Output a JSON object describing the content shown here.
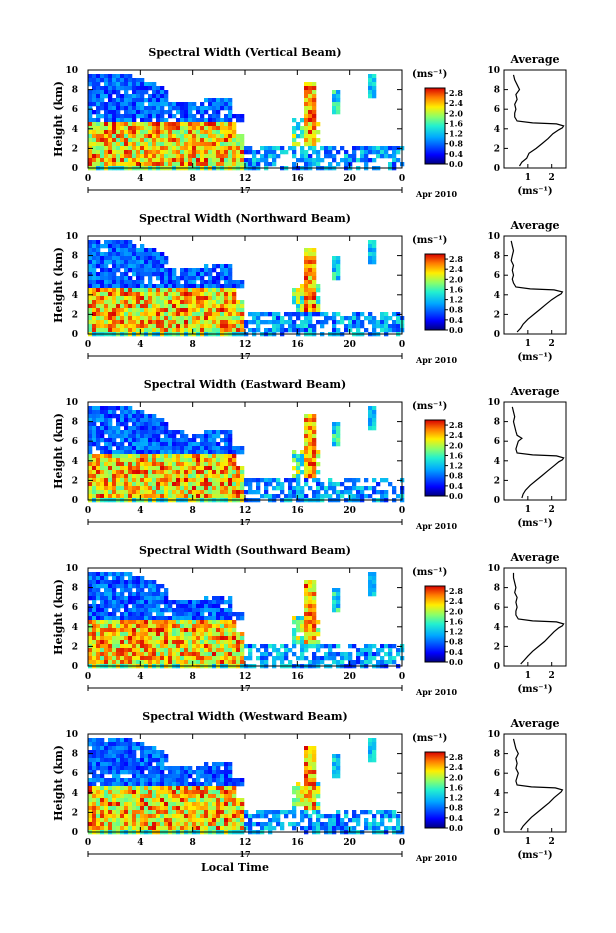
{
  "chart_data": [
    {
      "type": "heatmap",
      "title": "Spectral Width (Vertical Beam)",
      "ylabel": "Height (km)",
      "xlabel": "",
      "yticks": [
        "0",
        "2",
        "4",
        "6",
        "8",
        "10"
      ],
      "xticks": [
        "0",
        "4",
        "8",
        "12",
        "16",
        "20",
        "0"
      ],
      "day_label": "17",
      "date_label": "Apr 2010",
      "ylim": [
        0,
        10
      ],
      "xlim": [
        0,
        24
      ],
      "colorbar": {
        "unit": "(ms⁻¹)",
        "ticks": [
          "0.0",
          "0.4",
          "0.8",
          "1.2",
          "1.6",
          "2.0",
          "2.4",
          "2.8"
        ],
        "range": [
          0,
          3.0
        ]
      },
      "average": {
        "title": "Average",
        "xlabel": "(ms⁻¹)",
        "xticks": [
          "1",
          "2"
        ],
        "yticks": [
          "0",
          "2",
          "4",
          "6",
          "8",
          "10"
        ],
        "height": [
          0.2,
          0.6,
          1.0,
          1.5,
          2.0,
          2.5,
          3.0,
          3.5,
          3.9,
          4.1,
          4.3,
          4.5,
          4.6,
          4.8,
          5.2,
          5.6,
          6.0,
          6.5,
          7.0,
          7.5,
          8.0,
          8.5,
          9.0,
          9.5
        ],
        "value": [
          0.65,
          0.75,
          0.95,
          1.05,
          1.35,
          1.6,
          1.85,
          2.05,
          2.3,
          2.45,
          2.5,
          2.2,
          1.2,
          0.55,
          0.45,
          0.45,
          0.5,
          0.45,
          0.55,
          0.5,
          0.65,
          0.55,
          0.45,
          0.4
        ]
      }
    },
    {
      "type": "heatmap",
      "title": "Spectral Width (Northward Beam)",
      "ylabel": "Height (km)",
      "xlabel": "",
      "yticks": [
        "0",
        "2",
        "4",
        "6",
        "8",
        "10"
      ],
      "xticks": [
        "0",
        "4",
        "8",
        "12",
        "16",
        "20",
        "0"
      ],
      "day_label": "17",
      "date_label": "Apr 2010",
      "ylim": [
        0,
        10
      ],
      "xlim": [
        0,
        24
      ],
      "colorbar": {
        "unit": "(ms⁻¹)",
        "ticks": [
          "0.0",
          "0.4",
          "0.8",
          "1.2",
          "1.6",
          "2.0",
          "2.4",
          "2.8"
        ],
        "range": [
          0,
          3.0
        ]
      },
      "average": {
        "title": "Average",
        "xlabel": "(ms⁻¹)",
        "xticks": [
          "1",
          "2"
        ],
        "yticks": [
          "0",
          "2",
          "4",
          "6",
          "8",
          "10"
        ],
        "height": [
          0.2,
          0.6,
          1.0,
          1.5,
          2.0,
          2.5,
          3.0,
          3.5,
          3.9,
          4.1,
          4.3,
          4.5,
          4.6,
          4.8,
          5.2,
          5.6,
          6.0,
          6.5,
          7.0,
          7.5,
          8.0,
          8.5,
          9.0,
          9.5
        ],
        "value": [
          0.55,
          0.7,
          0.8,
          1.0,
          1.25,
          1.5,
          1.75,
          2.0,
          2.25,
          2.4,
          2.45,
          2.1,
          1.1,
          0.5,
          0.4,
          0.35,
          0.4,
          0.35,
          0.4,
          0.3,
          0.35,
          0.4,
          0.35,
          0.3
        ]
      }
    },
    {
      "type": "heatmap",
      "title": "Spectral Width (Eastward Beam)",
      "ylabel": "Height (km)",
      "xlabel": "",
      "yticks": [
        "0",
        "2",
        "4",
        "6",
        "8",
        "10"
      ],
      "xticks": [
        "0",
        "4",
        "8",
        "12",
        "16",
        "20",
        "0"
      ],
      "day_label": "17",
      "date_label": "Apr 2010",
      "ylim": [
        0,
        10
      ],
      "xlim": [
        0,
        24
      ],
      "colorbar": {
        "unit": "(ms⁻¹)",
        "ticks": [
          "0.0",
          "0.4",
          "0.8",
          "1.2",
          "1.6",
          "2.0",
          "2.4",
          "2.8"
        ],
        "range": [
          0,
          3.0
        ]
      },
      "average": {
        "title": "Average",
        "xlabel": "(ms⁻¹)",
        "xticks": [
          "1",
          "2"
        ],
        "yticks": [
          "0",
          "2",
          "4",
          "6",
          "8",
          "10"
        ],
        "height": [
          0.2,
          0.6,
          1.0,
          1.5,
          2.0,
          2.5,
          3.0,
          3.5,
          3.9,
          4.1,
          4.3,
          4.5,
          4.6,
          4.8,
          5.2,
          5.6,
          6.0,
          6.3,
          6.6,
          7.0,
          7.5,
          8.0,
          8.5,
          9.0,
          9.5
        ],
        "value": [
          0.75,
          0.8,
          0.9,
          1.1,
          1.35,
          1.6,
          1.85,
          2.1,
          2.3,
          2.45,
          2.5,
          2.2,
          1.2,
          0.55,
          0.5,
          0.55,
          0.6,
          0.75,
          0.55,
          0.5,
          0.45,
          0.4,
          0.45,
          0.4,
          0.35
        ]
      }
    },
    {
      "type": "heatmap",
      "title": "Spectral Width (Southward Beam)",
      "ylabel": "Height (km)",
      "xlabel": "",
      "yticks": [
        "0",
        "2",
        "4",
        "6",
        "8",
        "10"
      ],
      "xticks": [
        "0",
        "4",
        "8",
        "12",
        "16",
        "20",
        "0"
      ],
      "day_label": "17",
      "date_label": "Apr 2010",
      "ylim": [
        0,
        10
      ],
      "xlim": [
        0,
        24
      ],
      "colorbar": {
        "unit": "(ms⁻¹)",
        "ticks": [
          "0.0",
          "0.4",
          "0.8",
          "1.2",
          "1.6",
          "2.0",
          "2.4",
          "2.8"
        ],
        "range": [
          0,
          3.0
        ]
      },
      "average": {
        "title": "Average",
        "xlabel": "(ms⁻¹)",
        "xticks": [
          "1",
          "2"
        ],
        "yticks": [
          "0",
          "2",
          "4",
          "6",
          "8",
          "10"
        ],
        "height": [
          0.2,
          0.6,
          1.0,
          1.5,
          2.0,
          2.5,
          3.0,
          3.5,
          3.9,
          4.1,
          4.3,
          4.5,
          4.6,
          4.8,
          5.2,
          5.6,
          6.0,
          6.5,
          7.0,
          7.5,
          8.0,
          8.5,
          9.0,
          9.5
        ],
        "value": [
          0.7,
          0.85,
          1.0,
          1.2,
          1.45,
          1.7,
          1.9,
          2.1,
          2.3,
          2.45,
          2.5,
          2.2,
          1.2,
          0.6,
          0.5,
          0.5,
          0.55,
          0.5,
          0.55,
          0.45,
          0.5,
          0.45,
          0.4,
          0.4
        ]
      }
    },
    {
      "type": "heatmap",
      "title": "Spectral Width (Westward Beam)",
      "ylabel": "Height (km)",
      "xlabel": "Local Time",
      "yticks": [
        "0",
        "2",
        "4",
        "6",
        "8",
        "10"
      ],
      "xticks": [
        "0",
        "4",
        "8",
        "12",
        "16",
        "20",
        "0"
      ],
      "day_label": "17",
      "date_label": "Apr 2010",
      "ylim": [
        0,
        10
      ],
      "xlim": [
        0,
        24
      ],
      "colorbar": {
        "unit": "(ms⁻¹)",
        "ticks": [
          "0.0",
          "0.4",
          "0.8",
          "1.2",
          "1.6",
          "2.0",
          "2.4",
          "2.8"
        ],
        "range": [
          0,
          3.0
        ]
      },
      "average": {
        "title": "Average",
        "xlabel": "(ms⁻¹)",
        "xticks": [
          "1",
          "2"
        ],
        "yticks": [
          "0",
          "2",
          "4",
          "6",
          "8",
          "10"
        ],
        "height": [
          0.2,
          0.6,
          1.0,
          1.5,
          2.0,
          2.5,
          3.0,
          3.5,
          3.9,
          4.1,
          4.3,
          4.5,
          4.6,
          4.8,
          5.2,
          5.6,
          6.0,
          6.5,
          7.0,
          7.5,
          8.0,
          8.5,
          9.0,
          9.5
        ],
        "value": [
          0.7,
          0.8,
          0.95,
          1.15,
          1.4,
          1.65,
          1.9,
          2.1,
          2.3,
          2.4,
          2.45,
          2.15,
          1.15,
          0.55,
          0.5,
          0.55,
          0.6,
          0.5,
          0.55,
          0.5,
          0.6,
          0.5,
          0.45,
          0.4
        ]
      }
    }
  ]
}
